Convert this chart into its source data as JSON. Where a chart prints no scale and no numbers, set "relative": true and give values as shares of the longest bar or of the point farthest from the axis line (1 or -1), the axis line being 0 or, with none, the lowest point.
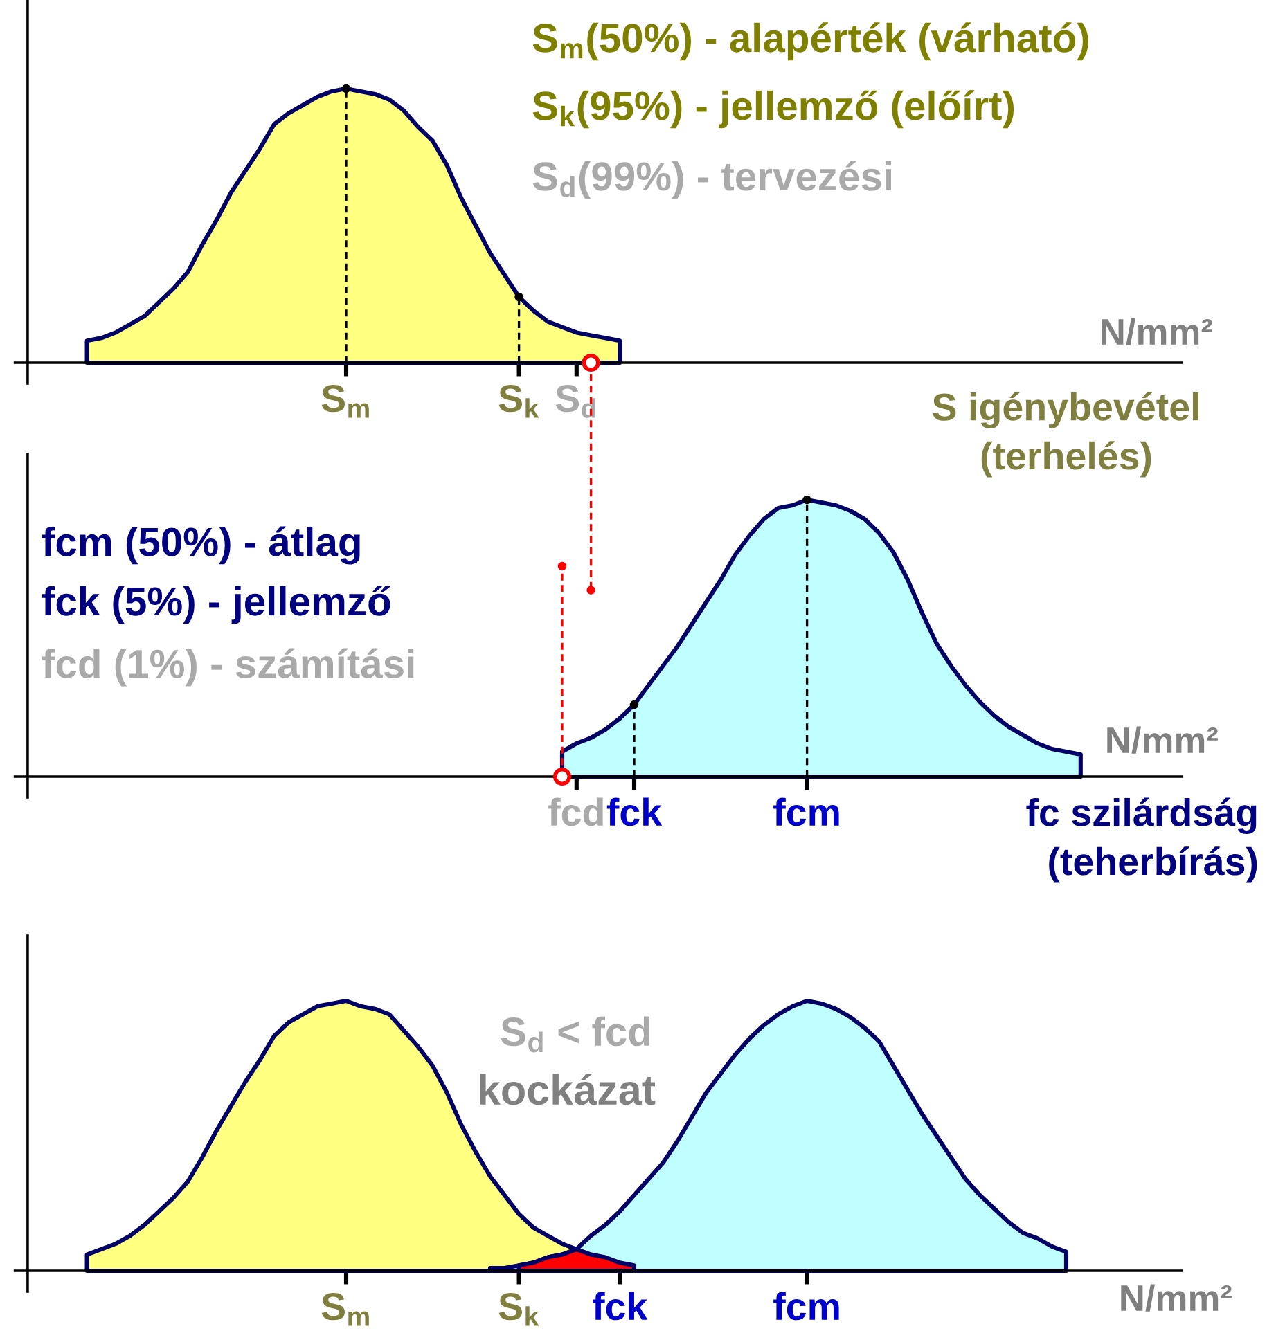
{
  "chart_data": [
    {
      "type": "area",
      "relative": true,
      "categories": [
        null,
        null,
        null,
        null,
        null,
        null,
        null,
        null,
        null,
        null,
        null,
        null,
        null,
        null,
        null,
        null,
        null,
        null,
        null,
        null,
        null,
        null,
        null,
        "S$_{m}$",
        null,
        null,
        null,
        null,
        null,
        null,
        null,
        null,
        null,
        null,
        null,
        "S$_{k}$",
        null,
        null,
        null,
        "S$_{d}$",
        null,
        null,
        null,
        null,
        null,
        null,
        null,
        null,
        null,
        null,
        null,
        null,
        null,
        null,
        null,
        null,
        null,
        null,
        null,
        null,
        null,
        null,
        null,
        null,
        null,
        null,
        null,
        null,
        null,
        null,
        null,
        null,
        null,
        null,
        null,
        null,
        null,
        null,
        null,
        null,
        null,
        null
      ],
      "series": [
        {
          "color": "#ffff80",
          "values": [
            null,
            null,
            null,
            null,
            null,
            0.08,
            0.09,
            0.11,
            0.14,
            0.17,
            0.22,
            0.27,
            0.33,
            0.43,
            0.52,
            0.62,
            0.7,
            0.78,
            0.87,
            0.91,
            0.94,
            0.97,
            0.99,
            1,
            0.99,
            0.98,
            0.96,
            0.92,
            0.86,
            0.81,
            0.72,
            0.6,
            0.5,
            0.4,
            0.32,
            0.24,
            0.19,
            0.15,
            0.13,
            0.11,
            0.1,
            0.09,
            0.08,
            null,
            null,
            null,
            null,
            null,
            null,
            null,
            null,
            null,
            null,
            null,
            null,
            null,
            null,
            null,
            null,
            null,
            null,
            null,
            null,
            null,
            null,
            null,
            null,
            null,
            null,
            null,
            null,
            null,
            null,
            null,
            null,
            null,
            null,
            null,
            null,
            null,
            null,
            null
          ]
        },
        {
          "type": "lollipop",
          "color": "#000000",
          "line_style": "dashed",
          "marker": "circle",
          "values": [
            null,
            null,
            null,
            null,
            null,
            null,
            null,
            null,
            null,
            null,
            null,
            null,
            null,
            null,
            null,
            null,
            null,
            null,
            null,
            null,
            null,
            null,
            null,
            1,
            null,
            null,
            null,
            null,
            null,
            null,
            null,
            null,
            null,
            null,
            null,
            0.24,
            null,
            null,
            null,
            null,
            null,
            null,
            null,
            null,
            null,
            null,
            null,
            null,
            null,
            null,
            null,
            null,
            null,
            null,
            null,
            null,
            null,
            null,
            null,
            null,
            null,
            null,
            null,
            null,
            null,
            null,
            null,
            null,
            null,
            null,
            null,
            null,
            null,
            null,
            null,
            null,
            null,
            null,
            null,
            null,
            null,
            null
          ]
        },
        {
          "type": "scatter",
          "color": "#ff0000",
          "marker": "circle",
          "values": [
            null,
            null,
            null,
            null,
            null,
            null,
            null,
            null,
            null,
            null,
            null,
            null,
            null,
            null,
            null,
            null,
            null,
            null,
            null,
            null,
            null,
            null,
            null,
            null,
            null,
            null,
            null,
            null,
            null,
            null,
            null,
            null,
            null,
            null,
            null,
            null,
            null,
            null,
            null,
            null,
            0,
            null,
            null,
            null,
            null,
            null,
            null,
            null,
            null,
            null,
            null,
            null,
            null,
            null,
            null,
            null,
            null,
            null,
            null,
            null,
            null,
            null,
            null,
            null,
            null,
            null,
            null,
            null,
            null,
            null,
            null,
            null,
            null,
            null,
            null,
            null,
            null,
            null,
            null,
            null,
            null,
            null
          ]
        },
        {
          "type": "lollipop",
          "color": "#ff0000",
          "line_style": "dashed",
          "marker": "circle",
          "values": [
            null,
            null,
            null,
            null,
            null,
            null,
            null,
            null,
            null,
            null,
            null,
            null,
            null,
            null,
            null,
            null,
            null,
            null,
            null,
            null,
            null,
            null,
            null,
            null,
            null,
            null,
            null,
            null,
            null,
            null,
            null,
            null,
            null,
            null,
            null,
            null,
            null,
            null,
            null,
            null,
            -0.83,
            null,
            null,
            null,
            null,
            null,
            null,
            null,
            null,
            null,
            null,
            null,
            null,
            null,
            null,
            null,
            null,
            null,
            null,
            null,
            null,
            null,
            null,
            null,
            null,
            null,
            null,
            null,
            null,
            null,
            null,
            null,
            null,
            null,
            null,
            null,
            null,
            null,
            null,
            null,
            null,
            null
          ]
        }
      ],
      "xlabel": "S igénybevétel\n(terhelés)",
      "annotations": [
        "S$_{m}$(50%) - alapérték (várható)",
        "S$_{k}$(95%) - jellemző (előírt)",
        "S$_{d}$(99%) - tervezési",
        "N/mm²"
      ]
    },
    {
      "type": "area",
      "relative": true,
      "categories": [
        null,
        null,
        null,
        null,
        null,
        null,
        null,
        null,
        null,
        null,
        null,
        null,
        null,
        null,
        null,
        null,
        null,
        null,
        null,
        null,
        null,
        null,
        null,
        null,
        null,
        null,
        null,
        null,
        null,
        null,
        null,
        null,
        null,
        null,
        null,
        null,
        null,
        null,
        null,
        "fcd",
        null,
        null,
        null,
        "fck",
        null,
        null,
        null,
        null,
        null,
        null,
        null,
        null,
        null,
        null,
        null,
        "fcm",
        null,
        null,
        null,
        null,
        null,
        null,
        null,
        null,
        null,
        null,
        null,
        null,
        null,
        null,
        null,
        null,
        null,
        null,
        null,
        null,
        null,
        null,
        null,
        null,
        null,
        null
      ],
      "series": [
        {
          "color": "#bfffff",
          "values": [
            null,
            null,
            null,
            null,
            null,
            null,
            null,
            null,
            null,
            null,
            null,
            null,
            null,
            null,
            null,
            null,
            null,
            null,
            null,
            null,
            null,
            null,
            null,
            null,
            null,
            null,
            null,
            null,
            null,
            null,
            null,
            null,
            null,
            null,
            null,
            null,
            null,
            null,
            0.09,
            0.12,
            0.14,
            0.17,
            0.21,
            0.26,
            0.33,
            0.4,
            0.47,
            0.55,
            0.63,
            0.71,
            0.8,
            0.87,
            0.93,
            0.97,
            0.98,
            1,
            0.99,
            0.98,
            0.96,
            0.93,
            0.88,
            0.81,
            0.71,
            0.59,
            0.48,
            0.4,
            0.33,
            0.27,
            0.22,
            0.18,
            0.15,
            0.12,
            0.1,
            0.09,
            0.08,
            null,
            null,
            null,
            null,
            null,
            null,
            null
          ]
        },
        {
          "type": "lollipop",
          "color": "#000000",
          "line_style": "dashed",
          "marker": "circle",
          "values": [
            null,
            null,
            null,
            null,
            null,
            null,
            null,
            null,
            null,
            null,
            null,
            null,
            null,
            null,
            null,
            null,
            null,
            null,
            null,
            null,
            null,
            null,
            null,
            null,
            null,
            null,
            null,
            null,
            null,
            null,
            null,
            null,
            null,
            null,
            null,
            null,
            null,
            null,
            null,
            null,
            null,
            null,
            null,
            0.26,
            null,
            null,
            null,
            null,
            null,
            null,
            null,
            null,
            null,
            null,
            null,
            1,
            null,
            null,
            null,
            null,
            null,
            null,
            null,
            null,
            null,
            null,
            null,
            null,
            null,
            null,
            null,
            null,
            null,
            null,
            null,
            null,
            null,
            null,
            null,
            null,
            null,
            null
          ]
        },
        {
          "type": "scatter",
          "color": "#ff0000",
          "marker": "circle",
          "values": [
            null,
            null,
            null,
            null,
            null,
            null,
            null,
            null,
            null,
            null,
            null,
            null,
            null,
            null,
            null,
            null,
            null,
            null,
            null,
            null,
            null,
            null,
            null,
            null,
            null,
            null,
            null,
            null,
            null,
            null,
            null,
            null,
            null,
            null,
            null,
            null,
            null,
            null,
            0,
            null,
            null,
            null,
            null,
            null,
            null,
            null,
            null,
            null,
            null,
            null,
            null,
            null,
            null,
            null,
            null,
            null,
            null,
            null,
            null,
            null,
            null,
            null,
            null,
            null,
            null,
            null,
            null,
            null,
            null,
            null,
            null,
            null,
            null,
            null,
            null,
            null,
            null,
            null,
            null,
            null,
            null,
            null
          ]
        },
        {
          "type": "lollipop",
          "color": "#ff0000",
          "line_style": "dashed",
          "marker": "circle",
          "values": [
            null,
            null,
            null,
            null,
            null,
            null,
            null,
            null,
            null,
            null,
            null,
            null,
            null,
            null,
            null,
            null,
            null,
            null,
            null,
            null,
            null,
            null,
            null,
            null,
            null,
            null,
            null,
            null,
            null,
            null,
            null,
            null,
            null,
            null,
            null,
            null,
            null,
            null,
            0.76,
            null,
            null,
            null,
            null,
            null,
            null,
            null,
            null,
            null,
            null,
            null,
            null,
            null,
            null,
            null,
            null,
            null,
            null,
            null,
            null,
            null,
            null,
            null,
            null,
            null,
            null,
            null,
            null,
            null,
            null,
            null,
            null,
            null,
            null,
            null,
            null,
            null,
            null,
            null,
            null,
            null,
            null,
            null
          ]
        }
      ],
      "xlabel": "fc szilárdság\n(teherbírás)",
      "annotations": [
        "fcm (50%) - átlag",
        "fck (5%) - jellemző",
        "fcd (1%) - számítási",
        "N/mm²"
      ]
    },
    {
      "type": "area",
      "relative": true,
      "categories": [
        null,
        null,
        null,
        null,
        null,
        null,
        null,
        null,
        null,
        null,
        null,
        null,
        null,
        null,
        null,
        null,
        null,
        null,
        null,
        null,
        null,
        null,
        null,
        "S$_{m}$",
        null,
        null,
        null,
        null,
        null,
        null,
        null,
        null,
        null,
        null,
        null,
        "S$_{k}$",
        null,
        null,
        null,
        null,
        null,
        null,
        "fck",
        null,
        null,
        null,
        null,
        null,
        null,
        null,
        null,
        null,
        null,
        null,
        null,
        "fcm",
        null,
        null,
        null,
        null,
        null,
        null,
        null,
        null,
        null,
        null,
        null,
        null,
        null,
        null,
        null,
        null,
        null,
        null,
        null,
        null,
        null,
        null,
        null,
        null,
        null,
        null
      ],
      "series": [
        {
          "color": "#ffff80",
          "values": [
            null,
            null,
            null,
            null,
            null,
            0.06,
            0.08,
            0.1,
            0.13,
            0.17,
            0.22,
            0.27,
            0.33,
            0.42,
            0.52,
            0.61,
            0.7,
            0.78,
            0.87,
            0.92,
            0.95,
            0.98,
            0.99,
            1,
            0.98,
            0.97,
            0.95,
            0.89,
            0.83,
            0.76,
            0.66,
            0.54,
            0.44,
            0.35,
            0.28,
            0.21,
            0.16,
            0.13,
            0.1,
            0.08,
            null,
            null,
            null,
            null,
            null,
            null,
            null,
            null,
            null,
            null,
            null,
            null,
            null,
            null,
            null,
            null,
            null,
            null,
            null,
            null,
            null,
            null,
            null,
            null,
            null,
            null,
            null,
            null,
            null,
            null,
            null,
            null,
            null,
            null,
            null,
            null,
            null,
            null,
            null,
            null,
            null,
            null
          ]
        },
        {
          "color": "#bfffff",
          "values": [
            null,
            null,
            null,
            null,
            null,
            null,
            null,
            null,
            null,
            null,
            null,
            null,
            null,
            null,
            null,
            null,
            null,
            null,
            null,
            null,
            null,
            null,
            null,
            null,
            null,
            null,
            null,
            null,
            null,
            null,
            null,
            null,
            null,
            0.01,
            0.01,
            0.02,
            0.03,
            0.05,
            0.06,
            0.08,
            0.13,
            0.17,
            0.22,
            0.28,
            0.34,
            0.4,
            0.48,
            0.57,
            0.66,
            0.73,
            0.8,
            0.86,
            0.91,
            0.95,
            0.98,
            1,
            0.99,
            0.97,
            0.94,
            0.9,
            0.85,
            0.76,
            0.67,
            0.58,
            0.5,
            0.42,
            0.34,
            0.28,
            0.23,
            0.18,
            0.14,
            0.12,
            0.09,
            0.07,
            null,
            null,
            null,
            null,
            null,
            null,
            null,
            null
          ]
        },
        {
          "color": "#ff0000",
          "values": [
            null,
            null,
            null,
            null,
            null,
            null,
            null,
            null,
            null,
            null,
            null,
            null,
            null,
            null,
            null,
            null,
            null,
            null,
            null,
            null,
            null,
            null,
            null,
            null,
            null,
            null,
            null,
            null,
            null,
            null,
            null,
            null,
            null,
            null,
            null,
            0.02,
            0.03,
            0.05,
            0.06,
            0.08,
            0.06,
            0.05,
            0.03,
            0.02,
            null,
            null,
            null,
            null,
            null,
            null,
            null,
            null,
            null,
            null,
            null,
            null,
            null,
            null,
            null,
            null,
            null,
            null,
            null,
            null,
            null,
            null,
            null,
            null,
            null,
            null,
            null,
            null,
            null,
            null,
            null,
            null,
            null,
            null,
            null,
            null,
            null,
            null
          ]
        }
      ],
      "annotations": [
        "S$_{d}$ < fcd",
        "kockázat",
        "N/mm²"
      ]
    }
  ]
}
